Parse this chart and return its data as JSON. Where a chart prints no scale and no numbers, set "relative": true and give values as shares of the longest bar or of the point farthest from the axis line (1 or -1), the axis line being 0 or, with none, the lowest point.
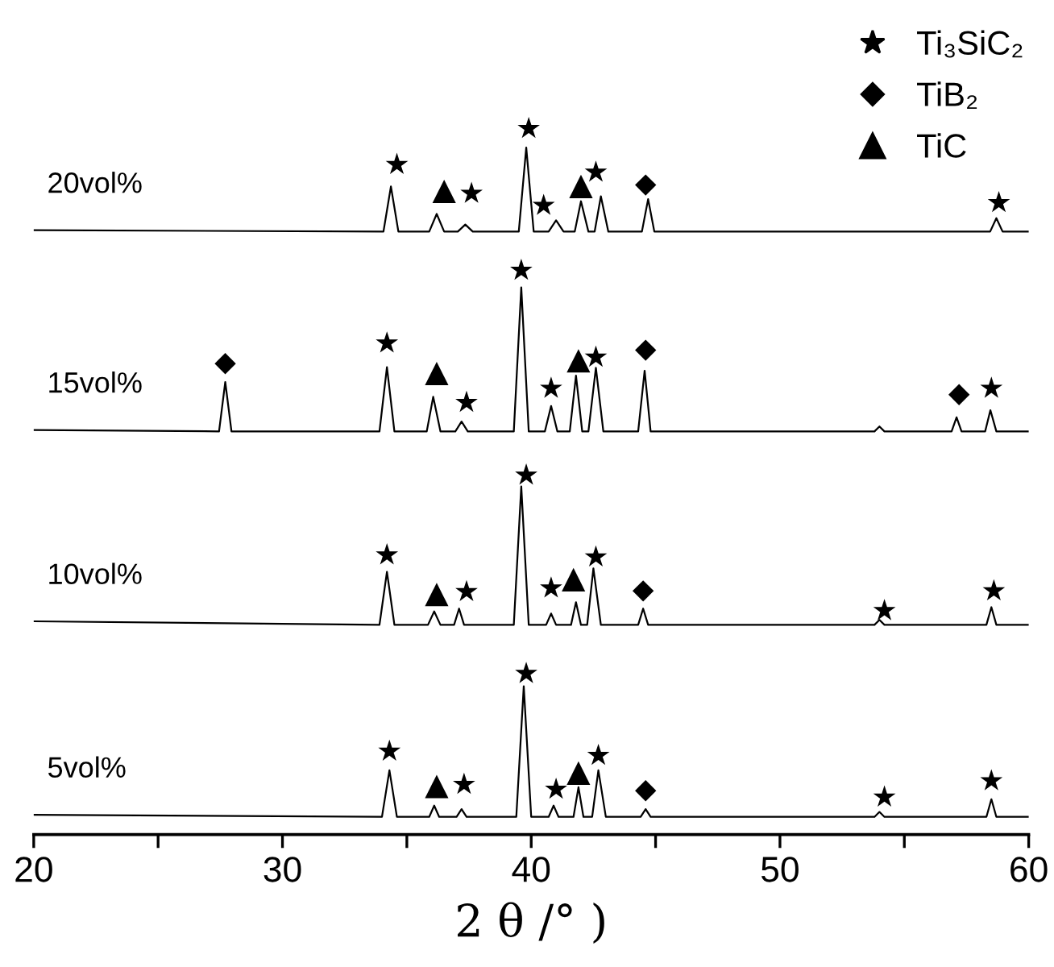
{
  "chart_data": {
    "type": "line",
    "relative": true,
    "xlabel": "2 θ /° )",
    "xlim": [
      20,
      60
    ],
    "xticks": [
      20,
      {
        "value": 25,
        "label": null
      },
      30,
      {
        "value": 35,
        "label": null
      },
      40,
      {
        "value": 45,
        "label": null
      },
      50,
      {
        "value": 55,
        "label": null
      },
      60
    ],
    "tick_labels": "x",
    "grid": false,
    "legend": "top right",
    "series": [
      {
        "name": "20vol%",
        "color": "#000000",
        "marker": "none",
        "x": [
          20,
          34.06,
          34.36,
          34.66,
          35.9,
          36.2,
          36.5,
          37.05,
          37.35,
          37.65,
          39.5,
          39.8,
          40.1,
          40.7,
          41.0,
          41.3,
          41.75,
          42.0,
          42.3,
          42.55,
          42.8,
          43.1,
          44.45,
          44.7,
          44.95,
          58.45,
          58.7,
          58.95,
          60
        ],
        "values": [
          0.856,
          0.854,
          0.918,
          0.854,
          0.854,
          0.879,
          0.854,
          0.854,
          0.864,
          0.854,
          0.854,
          0.973,
          0.854,
          0.854,
          0.87,
          0.854,
          0.854,
          0.897,
          0.854,
          0.854,
          0.904,
          0.854,
          0.854,
          0.9,
          0.854,
          0.854,
          0.873,
          0.854,
          0.854
        ]
      },
      {
        "name": "15vol%",
        "color": "#000000",
        "marker": "none",
        "x": [
          20,
          27.45,
          27.7,
          27.95,
          33.9,
          34.2,
          34.5,
          35.8,
          36.06,
          36.35,
          36.95,
          37.2,
          37.45,
          39.3,
          39.6,
          39.9,
          40.55,
          40.8,
          41.05,
          41.55,
          41.8,
          42.05,
          42.3,
          42.6,
          42.9,
          44.3,
          44.56,
          44.8,
          53.8,
          54.0,
          54.2,
          56.9,
          57.1,
          57.3,
          58.25,
          58.46,
          58.7,
          60
        ],
        "values": [
          0.573,
          0.571,
          0.641,
          0.571,
          0.571,
          0.662,
          0.571,
          0.571,
          0.62,
          0.571,
          0.571,
          0.585,
          0.571,
          0.571,
          0.775,
          0.571,
          0.571,
          0.607,
          0.571,
          0.571,
          0.65,
          0.571,
          0.571,
          0.661,
          0.571,
          0.571,
          0.657,
          0.571,
          0.571,
          0.578,
          0.571,
          0.571,
          0.591,
          0.571,
          0.571,
          0.601,
          0.571,
          0.571
        ]
      },
      {
        "name": "10vol%",
        "color": "#000000",
        "marker": "none",
        "x": [
          20,
          33.9,
          34.2,
          34.5,
          35.85,
          36.1,
          36.35,
          36.9,
          37.1,
          37.3,
          39.3,
          39.6,
          39.9,
          40.6,
          40.8,
          41.0,
          41.6,
          41.8,
          42.0,
          42.25,
          42.5,
          42.8,
          44.3,
          44.5,
          44.7,
          53.8,
          54.0,
          54.2,
          58.3,
          58.5,
          58.7,
          60
        ],
        "values": [
          0.302,
          0.297,
          0.372,
          0.297,
          0.297,
          0.316,
          0.297,
          0.297,
          0.32,
          0.297,
          0.297,
          0.493,
          0.297,
          0.297,
          0.313,
          0.297,
          0.297,
          0.329,
          0.297,
          0.297,
          0.377,
          0.297,
          0.297,
          0.32,
          0.297,
          0.297,
          0.304,
          0.297,
          0.297,
          0.322,
          0.297,
          0.297
        ]
      },
      {
        "name": "5vol%",
        "color": "#000000",
        "marker": "none",
        "x": [
          20,
          34.0,
          34.3,
          34.6,
          35.9,
          36.1,
          36.3,
          37.0,
          37.2,
          37.4,
          39.4,
          39.7,
          40.0,
          40.7,
          40.9,
          41.1,
          41.7,
          41.9,
          42.1,
          42.45,
          42.7,
          43.0,
          44.4,
          44.6,
          44.8,
          53.8,
          54.0,
          54.2,
          58.3,
          58.5,
          58.7,
          60
        ],
        "values": [
          0.028,
          0.025,
          0.091,
          0.025,
          0.025,
          0.041,
          0.025,
          0.025,
          0.036,
          0.025,
          0.025,
          0.21,
          0.025,
          0.025,
          0.041,
          0.025,
          0.025,
          0.067,
          0.025,
          0.025,
          0.091,
          0.025,
          0.025,
          0.036,
          0.025,
          0.025,
          0.032,
          0.025,
          0.025,
          0.05,
          0.025,
          0.025
        ]
      },
      {
        "name": "Ti₃SiC₂",
        "type": "scatter",
        "color": "#000000",
        "marker": "star",
        "x": [
          34.6,
          37.6,
          39.9,
          40.5,
          42.6,
          58.8,
          34.2,
          37.4,
          39.6,
          40.8,
          42.6,
          58.5,
          34.2,
          37.4,
          39.8,
          40.8,
          42.6,
          54.2,
          58.6,
          34.3,
          37.3,
          39.8,
          41.0,
          42.7,
          54.2,
          58.5
        ],
        "values": [
          0.949,
          0.908,
          1.0,
          0.891,
          0.938,
          0.895,
          0.696,
          0.612,
          0.799,
          0.632,
          0.676,
          0.632,
          0.396,
          0.344,
          0.509,
          0.349,
          0.393,
          0.317,
          0.345,
          0.118,
          0.071,
          0.228,
          0.064,
          0.112,
          0.053,
          0.076
        ]
      },
      {
        "name": "TiB₂",
        "type": "scatter",
        "color": "#000000",
        "marker": "diamond",
        "x": [
          44.6,
          27.7,
          44.6,
          57.2,
          44.5,
          44.6
        ],
        "values": [
          0.92,
          0.667,
          0.686,
          0.623,
          0.345,
          0.062
        ]
      },
      {
        "name": "TiC",
        "type": "scatter",
        "color": "#000000",
        "marker": "triangle",
        "x": [
          36.5,
          42.0,
          36.2,
          41.9,
          36.2,
          41.7,
          36.2,
          41.9
        ],
        "values": [
          0.911,
          0.918,
          0.653,
          0.671,
          0.34,
          0.361,
          0.068,
          0.087
        ]
      }
    ]
  }
}
